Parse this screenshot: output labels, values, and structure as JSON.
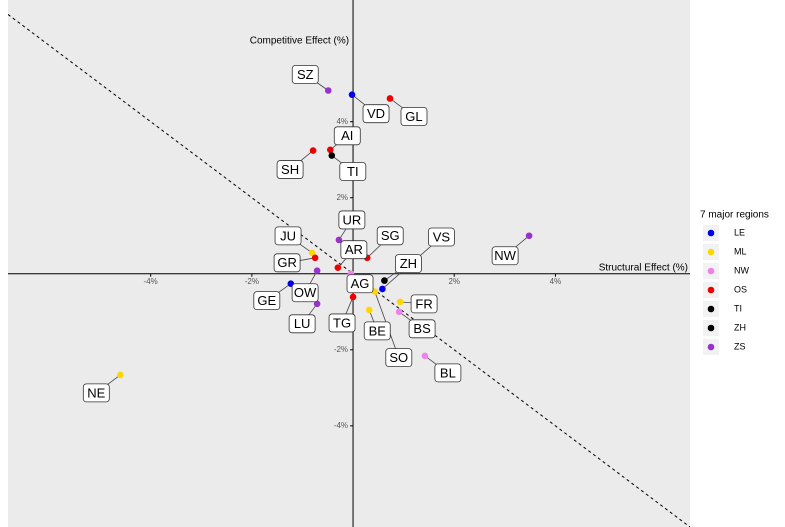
{
  "chart_data": {
    "type": "scatter",
    "x_label": "Structural Effect (%)",
    "y_label": "Competitive Effect (%)",
    "legend_title": "7 major regions",
    "legend_position": "right",
    "grid": false,
    "xlim": [
      -6.82,
      6.66
    ],
    "ylim": [
      -6.66,
      7.2
    ],
    "xticks": [
      {
        "value": -4,
        "label": "-4%"
      },
      {
        "value": -2,
        "label": "-2%"
      },
      {
        "value": 2,
        "label": "2%"
      },
      {
        "value": 4,
        "label": "4%"
      }
    ],
    "yticks": [
      {
        "value": -4,
        "label": "-4%"
      },
      {
        "value": -2,
        "label": "-2%"
      },
      {
        "value": 2,
        "label": "2%"
      },
      {
        "value": 4,
        "label": "4%"
      }
    ],
    "series": [
      {
        "name": "LE",
        "color": "#0000ee",
        "labels": [
          "VD",
          "GE",
          "VS"
        ],
        "x": [
          -0.02,
          -1.23,
          0.58
        ],
        "values": [
          4.71,
          -0.26,
          -0.4
        ]
      },
      {
        "name": "ML",
        "color": "#ffd700",
        "labels": [
          "JU",
          "NE",
          "FR",
          "BE",
          "SO"
        ],
        "x": [
          -0.81,
          -4.6,
          0.93,
          0.32,
          0.43
        ],
        "values": [
          0.55,
          -2.66,
          -0.74,
          -0.95,
          -0.47
        ]
      },
      {
        "name": "NW",
        "color": "#ee82ee",
        "labels": [
          "AG",
          "BS",
          "BL"
        ],
        "x": [
          -0.04,
          0.91,
          1.42
        ],
        "values": [
          0.0,
          -1.0,
          -2.16
        ]
      },
      {
        "name": "OS",
        "color": "#ee0000",
        "labels": [
          "GL",
          "AI",
          "SH",
          "GR",
          "AR",
          "SG",
          "TG"
        ],
        "x": [
          0.73,
          -0.45,
          -0.79,
          -0.75,
          -0.3,
          0.28,
          0.0
        ],
        "values": [
          4.61,
          3.26,
          3.24,
          0.42,
          0.16,
          0.42,
          -0.61
        ]
      },
      {
        "name": "TI",
        "color": "#000000",
        "labels": [
          "TI"
        ],
        "x": [
          -0.42
        ],
        "values": [
          3.11
        ]
      },
      {
        "name": "ZH",
        "color": "#000000",
        "labels": [
          "ZH"
        ],
        "x": [
          0.62
        ],
        "values": [
          -0.18
        ]
      },
      {
        "name": "ZS",
        "color": "#9932cc",
        "labels": [
          "SZ",
          "UR",
          "OW",
          "LU",
          "NW"
        ],
        "x": [
          -0.49,
          -0.28,
          -0.71,
          -0.71,
          3.48
        ],
        "values": [
          4.82,
          0.89,
          0.08,
          -0.79,
          1.0
        ]
      }
    ]
  }
}
